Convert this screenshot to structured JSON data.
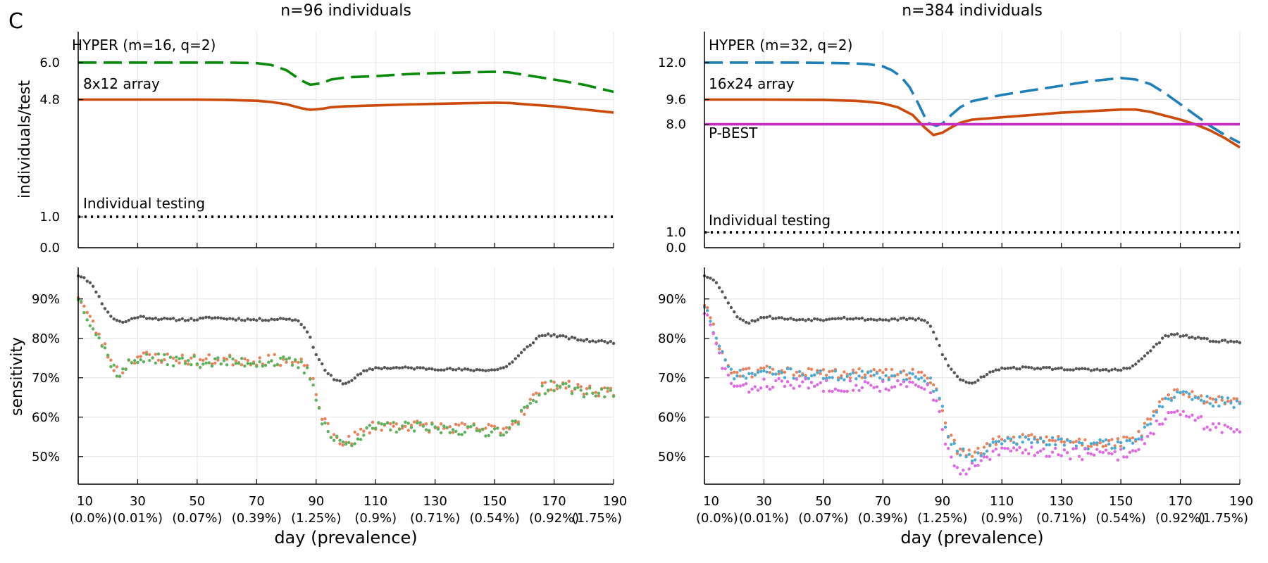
{
  "panel_letter": "C",
  "xlabel": "day (prevalence)",
  "x_ticks": [
    {
      "day": 10,
      "prev": "(0.0%)"
    },
    {
      "day": 30,
      "prev": "(0.01%)"
    },
    {
      "day": 50,
      "prev": "(0.07%)"
    },
    {
      "day": 70,
      "prev": "(0.39%)"
    },
    {
      "day": 90,
      "prev": "(1.25%)"
    },
    {
      "day": 110,
      "prev": "(0.9%)"
    },
    {
      "day": 130,
      "prev": "(0.71%)"
    },
    {
      "day": 150,
      "prev": "(0.54%)"
    },
    {
      "day": 170,
      "prev": "(0.92%)"
    },
    {
      "day": 190,
      "prev": "(1.75%)"
    }
  ],
  "colors": {
    "hyper_left": "#0a8a0a",
    "hyper_right": "#1f7fb8",
    "array": "#cc4a0a",
    "pbest": "#c62bc6",
    "individual": "#000000",
    "sens_individual": "#555555",
    "sens_array": "#e8825a",
    "sens_hyper_left": "#5bb25b",
    "sens_hyper_right": "#4da8cf",
    "sens_pbest": "#dc6ae0",
    "grid": "#e6e6e6"
  },
  "chart_data": [
    {
      "type": "line",
      "title": "n=96 individuals",
      "ylabel": "individuals/test",
      "xlim": [
        10,
        190
      ],
      "ylim": [
        0,
        7
      ],
      "y_ticks": [
        "6.0",
        "4.8",
        "1.0",
        "0.0"
      ],
      "y_tick_values": [
        6.0,
        4.8,
        1.0,
        0.0
      ],
      "series": [
        {
          "name": "HYPER (m=16, q=2)",
          "style": "dashed",
          "color_key": "hyper_left",
          "x": [
            10,
            20,
            30,
            40,
            50,
            60,
            70,
            75,
            80,
            85,
            88,
            92,
            95,
            100,
            110,
            120,
            130,
            140,
            150,
            155,
            160,
            170,
            180,
            190
          ],
          "y": [
            6.0,
            6.0,
            6.0,
            6.0,
            6.0,
            6.0,
            5.98,
            5.92,
            5.75,
            5.42,
            5.28,
            5.33,
            5.45,
            5.52,
            5.56,
            5.62,
            5.66,
            5.68,
            5.7,
            5.68,
            5.6,
            5.45,
            5.28,
            5.05
          ]
        },
        {
          "name": "8x12 array",
          "style": "solid",
          "color_key": "array",
          "x": [
            10,
            30,
            50,
            60,
            70,
            75,
            80,
            85,
            88,
            92,
            95,
            100,
            110,
            120,
            130,
            140,
            150,
            155,
            160,
            170,
            180,
            190
          ],
          "y": [
            4.8,
            4.8,
            4.8,
            4.79,
            4.76,
            4.72,
            4.65,
            4.52,
            4.47,
            4.5,
            4.55,
            4.58,
            4.61,
            4.64,
            4.66,
            4.68,
            4.7,
            4.69,
            4.65,
            4.58,
            4.48,
            4.38
          ]
        },
        {
          "name": "Individual testing",
          "style": "dotted",
          "color_key": "individual",
          "x": [
            10,
            190
          ],
          "y": [
            1.0,
            1.0
          ]
        }
      ]
    },
    {
      "type": "line",
      "title": "n=384 individuals",
      "ylabel": "",
      "xlim": [
        10,
        190
      ],
      "ylim": [
        0,
        14
      ],
      "y_ticks": [
        "12.0",
        "9.6",
        "8.0",
        "1.0",
        "0.0"
      ],
      "y_tick_values": [
        12.0,
        9.6,
        8.0,
        1.0,
        0.0
      ],
      "series": [
        {
          "name": "HYPER (m=32, q=2)",
          "style": "dashed",
          "color_key": "hyper_right",
          "x": [
            10,
            20,
            30,
            40,
            50,
            60,
            65,
            70,
            73,
            76,
            79,
            82,
            85,
            88,
            90,
            93,
            96,
            100,
            110,
            120,
            130,
            140,
            150,
            155,
            160,
            165,
            170,
            175,
            180,
            185,
            190
          ],
          "y": [
            12.0,
            12.0,
            12.0,
            12.0,
            11.98,
            11.95,
            11.9,
            11.75,
            11.5,
            11.1,
            10.4,
            9.3,
            8.1,
            7.9,
            8.05,
            8.6,
            9.1,
            9.5,
            9.9,
            10.2,
            10.5,
            10.8,
            11.0,
            10.9,
            10.6,
            10.0,
            9.3,
            8.6,
            7.9,
            7.3,
            6.8
          ]
        },
        {
          "name": "16x24 array",
          "style": "solid",
          "color_key": "array",
          "x": [
            10,
            30,
            50,
            60,
            65,
            70,
            75,
            80,
            84,
            87,
            90,
            93,
            96,
            100,
            110,
            120,
            130,
            140,
            150,
            155,
            160,
            165,
            170,
            175,
            180,
            185,
            190
          ],
          "y": [
            9.6,
            9.6,
            9.58,
            9.52,
            9.46,
            9.35,
            9.1,
            8.6,
            7.8,
            7.3,
            7.45,
            7.8,
            8.1,
            8.3,
            8.45,
            8.6,
            8.75,
            8.85,
            8.95,
            8.95,
            8.8,
            8.55,
            8.3,
            8.0,
            7.6,
            7.1,
            6.5
          ]
        },
        {
          "name": "P-BEST",
          "style": "solid",
          "color_key": "pbest",
          "x": [
            10,
            190
          ],
          "y": [
            8.0,
            8.0
          ]
        },
        {
          "name": "Individual testing",
          "style": "dotted",
          "color_key": "individual",
          "x": [
            10,
            190
          ],
          "y": [
            1.0,
            1.0
          ]
        }
      ]
    },
    {
      "type": "scatter",
      "title": "",
      "ylabel": "sensitivity",
      "xlim": [
        10,
        190
      ],
      "ylim": [
        43,
        98
      ],
      "y_ticks": [
        "90%",
        "80%",
        "70%",
        "60%",
        "50%"
      ],
      "y_tick_values": [
        90,
        80,
        70,
        60,
        50
      ],
      "series": [
        {
          "color_key": "sens_individual",
          "jitter": 0.3,
          "seed": 11,
          "x": [
            10,
            12,
            14,
            16,
            18,
            20,
            22,
            25,
            30,
            40,
            50,
            55,
            60,
            70,
            80,
            84,
            86,
            88,
            90,
            93,
            96,
            100,
            103,
            106,
            110,
            120,
            130,
            140,
            150,
            153,
            156,
            160,
            165,
            168,
            172,
            180,
            190
          ],
          "y": [
            96,
            95.5,
            94,
            92,
            89,
            86.5,
            85,
            84,
            85.5,
            84.8,
            84.8,
            85.3,
            85,
            84.7,
            85,
            84.5,
            83,
            80,
            76,
            72,
            69.5,
            68.5,
            70,
            71.5,
            72.5,
            72.5,
            72.3,
            72,
            72,
            72.5,
            74,
            77,
            80.5,
            81,
            80.5,
            79.5,
            79
          ]
        },
        {
          "color_key": "sens_array",
          "jitter": 1.4,
          "seed": 23,
          "x": [
            10,
            12,
            14,
            16,
            18,
            20,
            22,
            24,
            27,
            30,
            40,
            50,
            60,
            70,
            80,
            85,
            88,
            90,
            92,
            95,
            100,
            105,
            110,
            120,
            130,
            140,
            150,
            155,
            158,
            162,
            166,
            170,
            180,
            190
          ],
          "y": [
            91,
            88,
            85,
            82,
            79,
            76,
            73,
            71,
            74,
            75.5,
            75,
            74.5,
            74.5,
            74.5,
            74.5,
            73.5,
            71,
            66,
            60,
            55.5,
            53.5,
            56,
            58,
            58,
            57.5,
            57.2,
            57,
            57.5,
            60,
            64,
            67.5,
            68.5,
            67,
            66.5
          ]
        },
        {
          "color_key": "sens_hyper_left",
          "jitter": 1.4,
          "seed": 37,
          "x": [
            10,
            12,
            14,
            16,
            18,
            20,
            22,
            24,
            27,
            30,
            40,
            50,
            60,
            70,
            80,
            85,
            88,
            90,
            92,
            95,
            100,
            105,
            110,
            120,
            130,
            140,
            150,
            155,
            158,
            162,
            166,
            170,
            180,
            190
          ],
          "y": [
            90.5,
            87.5,
            84.5,
            81.5,
            78.5,
            75.5,
            72.5,
            70.5,
            73.5,
            75,
            74.5,
            74,
            74,
            74,
            74,
            73,
            70.5,
            65.5,
            59.5,
            55,
            53,
            55.5,
            57.5,
            57.5,
            57,
            56.8,
            56.5,
            57,
            59.5,
            63.5,
            67,
            68,
            66.5,
            66
          ]
        }
      ]
    },
    {
      "type": "scatter",
      "title": "",
      "ylabel": "",
      "xlim": [
        10,
        190
      ],
      "ylim": [
        43,
        98
      ],
      "y_ticks": [
        "90%",
        "80%",
        "70%",
        "60%",
        "50%"
      ],
      "y_tick_values": [
        90,
        80,
        70,
        60,
        50
      ],
      "series": [
        {
          "color_key": "sens_individual",
          "jitter": 0.3,
          "seed": 53,
          "x": [
            10,
            12,
            14,
            16,
            18,
            20,
            22,
            25,
            30,
            40,
            50,
            55,
            60,
            70,
            80,
            84,
            86,
            88,
            90,
            93,
            96,
            100,
            103,
            106,
            110,
            120,
            130,
            140,
            150,
            153,
            156,
            160,
            165,
            168,
            172,
            180,
            190
          ],
          "y": [
            96,
            95.5,
            94,
            92,
            89,
            86.5,
            85,
            84,
            85.5,
            84.8,
            84.8,
            85.3,
            85,
            84.7,
            85,
            84.5,
            83,
            80,
            76,
            72,
            69.5,
            68.5,
            70,
            71.5,
            72.5,
            72.5,
            72.3,
            72,
            72,
            72.5,
            74,
            77,
            80.5,
            81,
            80.5,
            79.5,
            79
          ]
        },
        {
          "color_key": "sens_array",
          "jitter": 1.3,
          "seed": 61,
          "x": [
            10,
            12,
            14,
            16,
            18,
            20,
            23,
            27,
            30,
            40,
            50,
            60,
            70,
            80,
            85,
            88,
            90,
            92,
            95,
            100,
            105,
            110,
            120,
            130,
            140,
            150,
            155,
            158,
            162,
            166,
            170,
            180,
            190
          ],
          "y": [
            89,
            85,
            80,
            76,
            73,
            71.5,
            71,
            71.5,
            72,
            71.5,
            71,
            71,
            71,
            71,
            70,
            67.5,
            62,
            56,
            52,
            50.5,
            52.5,
            54.5,
            54.5,
            54,
            53.5,
            53.5,
            54.5,
            57.5,
            62,
            65.5,
            66,
            64.5,
            64
          ]
        },
        {
          "color_key": "sens_hyper_right",
          "jitter": 1.3,
          "seed": 71,
          "x": [
            10,
            12,
            14,
            16,
            18,
            20,
            23,
            27,
            30,
            40,
            50,
            60,
            70,
            80,
            85,
            88,
            90,
            92,
            95,
            100,
            105,
            110,
            120,
            130,
            140,
            150,
            155,
            158,
            162,
            166,
            170,
            180,
            190
          ],
          "y": [
            88.5,
            84.5,
            79.5,
            75.5,
            72.5,
            71,
            70.5,
            71,
            71.5,
            71,
            70.5,
            70.5,
            70.5,
            70.5,
            69.5,
            67,
            61.5,
            55.5,
            51.5,
            50,
            52,
            54,
            54,
            53.5,
            53,
            53,
            54,
            57,
            61.5,
            65,
            65.5,
            64,
            63.5
          ]
        },
        {
          "color_key": "sens_pbest",
          "jitter": 1.5,
          "seed": 83,
          "x": [
            10,
            12,
            14,
            16,
            18,
            20,
            23,
            27,
            30,
            40,
            50,
            60,
            70,
            80,
            85,
            88,
            90,
            92,
            95,
            98,
            100,
            105,
            110,
            120,
            130,
            140,
            150,
            155,
            158,
            162,
            166,
            170,
            180,
            190
          ],
          "y": [
            87,
            83,
            78,
            73.5,
            70,
            68,
            67,
            67.5,
            68.5,
            68.5,
            68,
            68,
            68,
            68,
            67,
            64,
            58,
            51,
            46.5,
            45.5,
            47,
            49.5,
            51.5,
            51.5,
            51,
            50.5,
            50.5,
            51.5,
            54.5,
            58,
            60.5,
            60.5,
            58,
            56
          ]
        }
      ]
    }
  ]
}
